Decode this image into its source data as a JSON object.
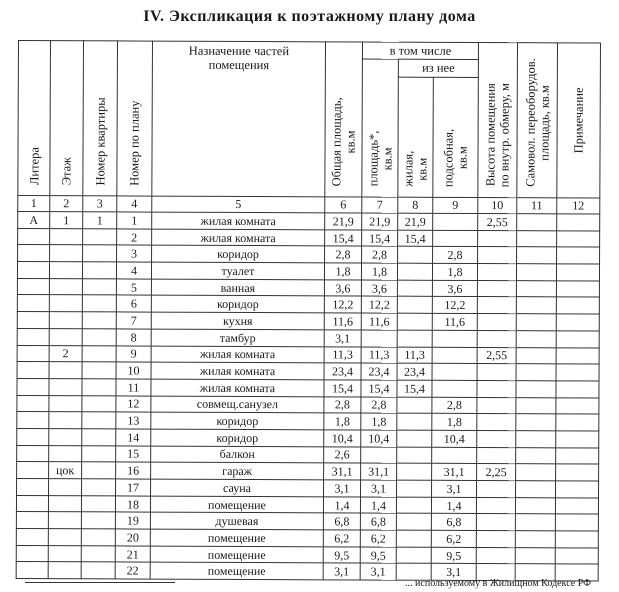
{
  "title": "IV.  Экспликация  к  поэтажному  плану  дома",
  "headers": {
    "c1": "Литера",
    "c2": "Этаж",
    "c3": "Номер квартиры",
    "c4": "Номер по плану",
    "c5": "Назначение частей помещения",
    "c6a": "Общая площадь,",
    "c6b": "кв.м",
    "group": "в том числе",
    "c7a": "площадь*,",
    "c7b": "кв.м",
    "subgroup": "из нее",
    "c8a": "жилая,",
    "c8b": "кв.м",
    "c9a": "подсобная,",
    "c9b": "кв.м",
    "c10a": "Высота помещения",
    "c10b": "по внутр. обмеру, м",
    "c11a": "Самовол. переоборудов.",
    "c11b": "площадь, кв.м",
    "c12": "Примечание"
  },
  "column_numbers": [
    "1",
    "2",
    "3",
    "4",
    "5",
    "6",
    "7",
    "8",
    "9",
    "10",
    "11",
    "12"
  ],
  "rows": [
    [
      "А",
      "1",
      "1",
      "1",
      "жилая комната",
      "21,9",
      "21,9",
      "21,9",
      "",
      "2,55",
      "",
      ""
    ],
    [
      "",
      "",
      "",
      "2",
      "жилая комната",
      "15,4",
      "15,4",
      "15,4",
      "",
      "",
      "",
      ""
    ],
    [
      "",
      "",
      "",
      "3",
      "коридор",
      "2,8",
      "2,8",
      "",
      "2,8",
      "",
      "",
      ""
    ],
    [
      "",
      "",
      "",
      "4",
      "туалет",
      "1,8",
      "1,8",
      "",
      "1,8",
      "",
      "",
      ""
    ],
    [
      "",
      "",
      "",
      "5",
      "ванная",
      "3,6",
      "3,6",
      "",
      "3,6",
      "",
      "",
      ""
    ],
    [
      "",
      "",
      "",
      "6",
      "коридор",
      "12,2",
      "12,2",
      "",
      "12,2",
      "",
      "",
      ""
    ],
    [
      "",
      "",
      "",
      "7",
      "кухня",
      "11,6",
      "11,6",
      "",
      "11,6",
      "",
      "",
      ""
    ],
    [
      "",
      "",
      "",
      "8",
      "тамбур",
      "3,1",
      "",
      "",
      "",
      "",
      "",
      ""
    ],
    [
      "",
      "2",
      "",
      "9",
      "жилая комната",
      "11,3",
      "11,3",
      "11,3",
      "",
      "2,55",
      "",
      ""
    ],
    [
      "",
      "",
      "",
      "10",
      "жилая комната",
      "23,4",
      "23,4",
      "23,4",
      "",
      "",
      "",
      ""
    ],
    [
      "",
      "",
      "",
      "11",
      "жилая комната",
      "15,4",
      "15,4",
      "15,4",
      "",
      "",
      "",
      ""
    ],
    [
      "",
      "",
      "",
      "12",
      "совмещ.санузел",
      "2,8",
      "2,8",
      "",
      "2,8",
      "",
      "",
      ""
    ],
    [
      "",
      "",
      "",
      "13",
      "коридор",
      "1,8",
      "1,8",
      "",
      "1,8",
      "",
      "",
      ""
    ],
    [
      "",
      "",
      "",
      "14",
      "коридор",
      "10,4",
      "10,4",
      "",
      "10,4",
      "",
      "",
      ""
    ],
    [
      "",
      "",
      "",
      "15",
      "балкон",
      "2,6",
      "",
      "",
      "",
      "",
      "",
      ""
    ],
    [
      "",
      "цок",
      "",
      "16",
      "гараж",
      "31,1",
      "31,1",
      "",
      "31,1",
      "2,25",
      "",
      ""
    ],
    [
      "",
      "",
      "",
      "17",
      "сауна",
      "3,1",
      "3,1",
      "",
      "3,1",
      "",
      "",
      ""
    ],
    [
      "",
      "",
      "",
      "18",
      "помещение",
      "1,4",
      "1,4",
      "",
      "1,4",
      "",
      "",
      ""
    ],
    [
      "",
      "",
      "",
      "19",
      "душевая",
      "6,8",
      "6,8",
      "",
      "6,8",
      "",
      "",
      ""
    ],
    [
      "",
      "",
      "",
      "20",
      "помещение",
      "6,2",
      "6,2",
      "",
      "6,2",
      "",
      "",
      ""
    ],
    [
      "",
      "",
      "",
      "21",
      "помещение",
      "9,5",
      "9,5",
      "",
      "9,5",
      "",
      "",
      ""
    ],
    [
      "",
      "",
      "",
      "22",
      "помещение",
      "3,1",
      "3,1",
      "",
      "3,1",
      "",
      "",
      ""
    ]
  ],
  "footnote": "... используемому в Жилищном Кодексе РФ"
}
